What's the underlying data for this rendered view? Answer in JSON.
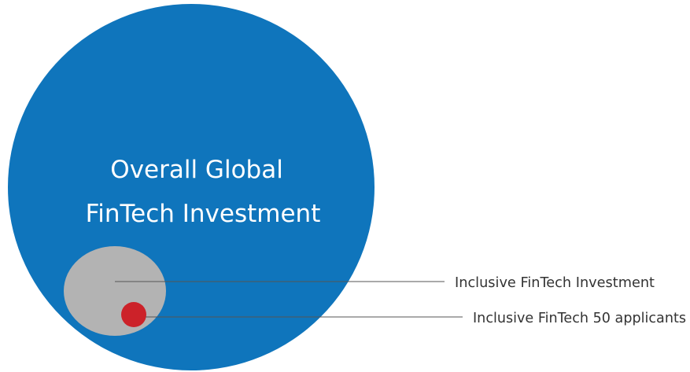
{
  "diagram": {
    "outer": {
      "label_lines": [
        "Overall Global",
        "FinTech Investment"
      ],
      "color": "#0f75bc"
    },
    "middle": {
      "label": "Inclusive FinTech Investment",
      "color": "#b3b3b3"
    },
    "inner": {
      "label": "Inclusive FinTech 50 applicants",
      "color": "#cc2229"
    },
    "line_color": "#555555"
  }
}
